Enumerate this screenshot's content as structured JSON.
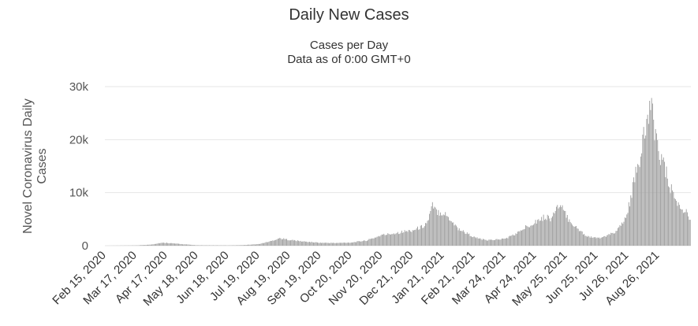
{
  "chart_data": {
    "type": "bar",
    "title": "Daily New Cases",
    "subtitle": [
      "Cases per Day",
      "Data as of 0:00 GMT+0"
    ],
    "ylabel": "Novel Coronavirus Daily Cases",
    "xlabel": "",
    "ylim": [
      0,
      30000
    ],
    "y_ticks": [
      0,
      10000,
      20000,
      30000
    ],
    "y_tick_labels": [
      "0",
      "10k",
      "20k",
      "30k"
    ],
    "x_start": "2020-02-15",
    "x_end": "2021-09-27",
    "x_tick_labels": [
      "Feb 15, 2020",
      "Mar 17, 2020",
      "Apr 17, 2020",
      "May 18, 2020",
      "Jun 18, 2020",
      "Jul 19, 2020",
      "Aug 19, 2020",
      "Sep 19, 2020",
      "Oct 20, 2020",
      "Nov 20, 2020",
      "Dec 21, 2020",
      "Jan 21, 2021",
      "Feb 21, 2021",
      "Mar 24, 2021",
      "Apr 24, 2021",
      "May 25, 2021",
      "Jun 25, 2021",
      "Jul 26, 2021",
      "Aug 26, 2021"
    ],
    "grid": true,
    "bar_color": "#a0a0a0",
    "series": [
      {
        "points": [
          [
            "2020-02-15",
            0
          ],
          [
            "2020-03-17",
            50
          ],
          [
            "2020-04-01",
            200
          ],
          [
            "2020-04-10",
            500
          ],
          [
            "2020-04-17",
            550
          ],
          [
            "2020-04-25",
            400
          ],
          [
            "2020-05-05",
            250
          ],
          [
            "2020-05-18",
            80
          ],
          [
            "2020-06-18",
            60
          ],
          [
            "2020-07-01",
            100
          ],
          [
            "2020-07-19",
            300
          ],
          [
            "2020-08-01",
            900
          ],
          [
            "2020-08-08",
            1400
          ],
          [
            "2020-08-19",
            1100
          ],
          [
            "2020-09-01",
            800
          ],
          [
            "2020-09-19",
            550
          ],
          [
            "2020-10-05",
            500
          ],
          [
            "2020-10-20",
            600
          ],
          [
            "2020-11-05",
            1000
          ],
          [
            "2020-11-20",
            2000
          ],
          [
            "2020-12-01",
            2300
          ],
          [
            "2020-12-10",
            2600
          ],
          [
            "2020-12-21",
            2900
          ],
          [
            "2020-12-31",
            3600
          ],
          [
            "2021-01-05",
            4500
          ],
          [
            "2021-01-10",
            7500
          ],
          [
            "2021-01-13",
            6600
          ],
          [
            "2021-01-21",
            6200
          ],
          [
            "2021-01-28",
            5000
          ],
          [
            "2021-02-05",
            3200
          ],
          [
            "2021-02-21",
            1600
          ],
          [
            "2021-03-05",
            1000
          ],
          [
            "2021-03-24",
            1300
          ],
          [
            "2021-04-05",
            2300
          ],
          [
            "2021-04-15",
            3600
          ],
          [
            "2021-04-24",
            4600
          ],
          [
            "2021-05-05",
            5500
          ],
          [
            "2021-05-10",
            5000
          ],
          [
            "2021-05-15",
            7300
          ],
          [
            "2021-05-22",
            6800
          ],
          [
            "2021-05-25",
            5500
          ],
          [
            "2021-06-05",
            3200
          ],
          [
            "2021-06-15",
            1800
          ],
          [
            "2021-06-25",
            1400
          ],
          [
            "2021-07-05",
            1800
          ],
          [
            "2021-07-15",
            2800
          ],
          [
            "2021-07-22",
            4500
          ],
          [
            "2021-07-26",
            6500
          ],
          [
            "2021-07-30",
            10000
          ],
          [
            "2021-08-05",
            15000
          ],
          [
            "2021-08-10",
            19000
          ],
          [
            "2021-08-15",
            24000
          ],
          [
            "2021-08-17",
            25700
          ],
          [
            "2021-08-20",
            24500
          ],
          [
            "2021-08-26",
            18500
          ],
          [
            "2021-09-01",
            14500
          ],
          [
            "2021-09-08",
            10500
          ],
          [
            "2021-09-15",
            7500
          ],
          [
            "2021-09-22",
            6500
          ],
          [
            "2021-09-27",
            5300
          ]
        ]
      }
    ]
  }
}
